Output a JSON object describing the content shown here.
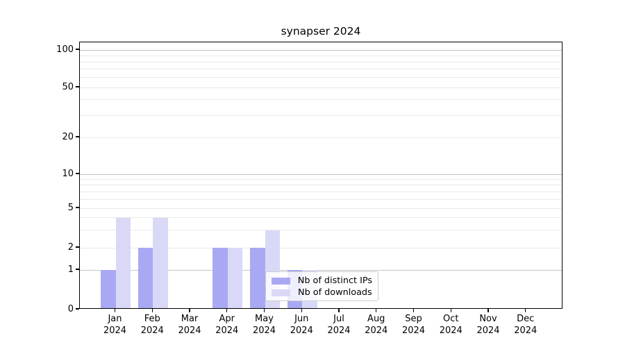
{
  "figure": {
    "title": "synapser 2024",
    "background": "#ffffff"
  },
  "chart_data": {
    "type": "bar",
    "title": "synapser 2024",
    "categories": [
      "Jan",
      "Feb",
      "Mar",
      "Apr",
      "May",
      "Jun",
      "Jul",
      "Aug",
      "Sep",
      "Oct",
      "Nov",
      "Dec"
    ],
    "category_year": "2024",
    "series": [
      {
        "name": "Nb of distinct IPs",
        "color": "#a9a9f3",
        "values": [
          1,
          2,
          0,
          2,
          2,
          1,
          0,
          0,
          0,
          0,
          0,
          0
        ]
      },
      {
        "name": "Nb of downloads",
        "color": "#d9d9f7",
        "values": [
          4,
          4,
          0,
          2,
          3,
          1,
          0,
          0,
          0,
          0,
          0,
          0
        ]
      }
    ],
    "xlabel": "",
    "ylabel": "",
    "y_axis": {
      "scale": "log-like (0,1 linear segment, log above)",
      "ticks": [
        0,
        1,
        2,
        5,
        10,
        20,
        50,
        100
      ],
      "ylim": [
        0,
        115
      ]
    },
    "grid": {
      "major_values": [
        1,
        10,
        100
      ],
      "minor_values": [
        2,
        3,
        4,
        5,
        6,
        7,
        8,
        9,
        20,
        30,
        40,
        50,
        60,
        70,
        80,
        90
      ],
      "major_color": "#c3c3c3",
      "minor_color": "#e9e9e9"
    },
    "legend": {
      "position": "inside-bottom-center",
      "entries": [
        "Nb of distinct IPs",
        "Nb of downloads"
      ]
    }
  }
}
